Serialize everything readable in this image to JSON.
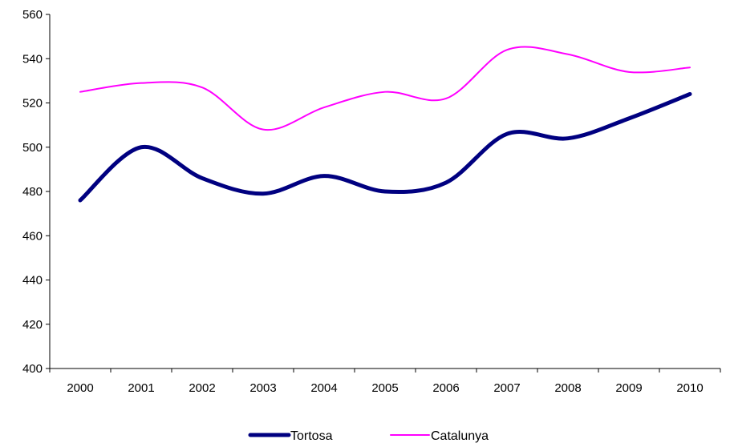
{
  "chart_data": {
    "type": "line",
    "categories": [
      "2000",
      "2001",
      "2002",
      "2003",
      "2004",
      "2005",
      "2006",
      "2007",
      "2008",
      "2009",
      "2010"
    ],
    "series": [
      {
        "name": "Tortosa",
        "values": [
          476,
          500,
          486,
          479,
          487,
          480,
          484,
          506,
          504,
          513,
          524
        ],
        "color": "#000080"
      },
      {
        "name": "Catalunya",
        "values": [
          525,
          529,
          527,
          508,
          518,
          525,
          522,
          544,
          542,
          534,
          536
        ],
        "color": "#ff00ff"
      }
    ],
    "yticks": [
      400,
      420,
      440,
      460,
      480,
      500,
      520,
      540,
      560
    ],
    "ylim": [
      400,
      560
    ],
    "title": "",
    "xlabel": "",
    "ylabel": "",
    "grid": false,
    "legend_position": "bottom"
  }
}
